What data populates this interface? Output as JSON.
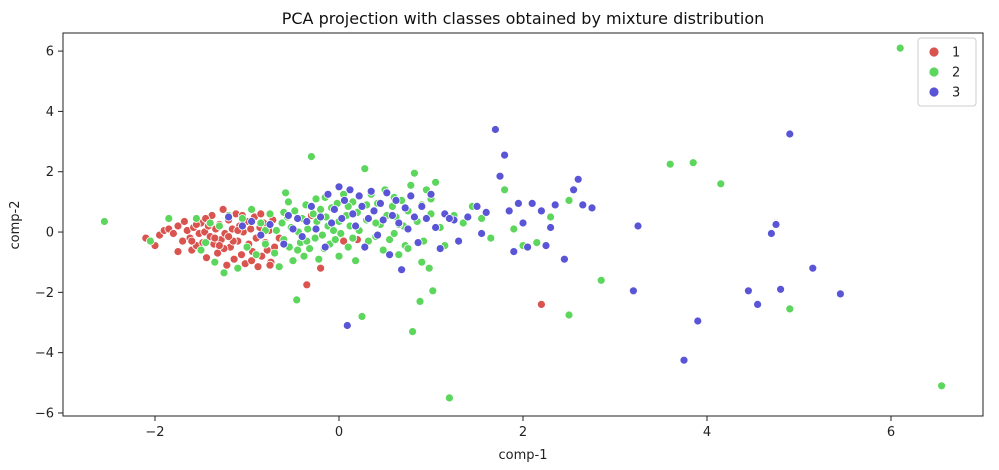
{
  "chart_data": {
    "type": "scatter",
    "title": "PCA projection with classes obtained by mixture distribution",
    "xlabel": "comp-1",
    "ylabel": "comp-2",
    "xlim": [
      -3.0,
      7.0
    ],
    "ylim": [
      -6.1,
      6.6
    ],
    "xticks": [
      -2,
      0,
      2,
      4,
      6
    ],
    "yticks": [
      -6,
      -4,
      -2,
      0,
      2,
      4,
      6
    ],
    "grid": false,
    "legend": "top-right",
    "series": [
      {
        "name": "1",
        "color": "#d9534f",
        "points": [
          [
            -2.1,
            -0.2
          ],
          [
            -2.0,
            -0.45
          ],
          [
            -1.95,
            -0.1
          ],
          [
            -1.9,
            0.05
          ],
          [
            -1.85,
            0.1
          ],
          [
            -1.8,
            -0.05
          ],
          [
            -1.75,
            0.2
          ],
          [
            -1.7,
            -0.3
          ],
          [
            -1.68,
            0.35
          ],
          [
            -1.65,
            0.05
          ],
          [
            -1.62,
            -0.2
          ],
          [
            -1.6,
            -0.6
          ],
          [
            -1.58,
            0.15
          ],
          [
            -1.55,
            -0.45
          ],
          [
            -1.52,
            -0.05
          ],
          [
            -1.5,
            0.3
          ],
          [
            -1.48,
            -0.35
          ],
          [
            -1.46,
            0.0
          ],
          [
            -1.44,
            -0.85
          ],
          [
            -1.42,
            0.2
          ],
          [
            -1.4,
            -0.15
          ],
          [
            -1.38,
            0.55
          ],
          [
            -1.36,
            -0.4
          ],
          [
            -1.34,
            0.1
          ],
          [
            -1.32,
            -0.7
          ],
          [
            -1.3,
            0.25
          ],
          [
            -1.28,
            -0.25
          ],
          [
            -1.26,
            0.75
          ],
          [
            -1.24,
            -0.05
          ],
          [
            -1.22,
            -1.1
          ],
          [
            -1.2,
            0.4
          ],
          [
            -1.18,
            -0.5
          ],
          [
            -1.16,
            0.1
          ],
          [
            -1.14,
            -0.9
          ],
          [
            -1.12,
            0.6
          ],
          [
            -1.1,
            -0.3
          ],
          [
            -1.08,
            0.2
          ],
          [
            -1.06,
            -0.75
          ],
          [
            -1.04,
            0.0
          ],
          [
            -1.02,
            -1.05
          ],
          [
            -1.0,
            0.35
          ],
          [
            -0.98,
            -0.4
          ],
          [
            -0.96,
            0.1
          ],
          [
            -0.94,
            -0.65
          ],
          [
            -0.92,
            0.5
          ],
          [
            -0.9,
            -0.2
          ],
          [
            -0.88,
            -1.15
          ],
          [
            -0.86,
            0.15
          ],
          [
            -0.84,
            -0.8
          ],
          [
            -0.82,
            0.3
          ],
          [
            -0.8,
            -0.35
          ],
          [
            -0.78,
            -0.6
          ],
          [
            -0.76,
            0.05
          ],
          [
            -0.74,
            -1.0
          ],
          [
            -0.72,
            0.4
          ],
          [
            -0.7,
            -0.5
          ],
          [
            -1.25,
            -0.55
          ],
          [
            -1.35,
            -0.2
          ],
          [
            -1.45,
            0.45
          ],
          [
            -1.55,
            0.25
          ],
          [
            -1.15,
            -0.3
          ],
          [
            -1.05,
            0.55
          ],
          [
            -0.95,
            -0.95
          ],
          [
            -0.85,
            0.6
          ],
          [
            -0.3,
            0.55
          ],
          [
            -0.2,
            -1.2
          ],
          [
            -0.35,
            -1.75
          ],
          [
            0.2,
            -0.25
          ],
          [
            0.05,
            -0.3
          ],
          [
            0.45,
            0.3
          ],
          [
            2.2,
            -2.4
          ],
          [
            -0.75,
            -1.1
          ],
          [
            -0.65,
            -0.2
          ],
          [
            -1.75,
            -0.65
          ],
          [
            -1.6,
            -0.3
          ],
          [
            -1.3,
            -0.45
          ],
          [
            -1.2,
            -0.15
          ],
          [
            -1.1,
            0.05
          ]
        ]
      },
      {
        "name": "2",
        "color": "#5cd65c",
        "points": [
          [
            -2.55,
            0.35
          ],
          [
            -2.05,
            -0.3
          ],
          [
            -1.85,
            0.45
          ],
          [
            -1.55,
            0.45
          ],
          [
            -1.5,
            -0.6
          ],
          [
            -1.4,
            0.3
          ],
          [
            -1.35,
            -1.0
          ],
          [
            -1.25,
            -1.35
          ],
          [
            -1.2,
            0.55
          ],
          [
            -1.1,
            -1.2
          ],
          [
            -1.05,
            0.45
          ],
          [
            -0.95,
            0.75
          ],
          [
            -0.9,
            -0.75
          ],
          [
            -0.85,
            0.3
          ],
          [
            -0.8,
            -0.4
          ],
          [
            -0.75,
            0.6
          ],
          [
            -0.7,
            -0.7
          ],
          [
            -0.68,
            0.05
          ],
          [
            -0.65,
            -1.15
          ],
          [
            -0.62,
            0.3
          ],
          [
            -0.6,
            -0.25
          ],
          [
            -0.58,
            1.3
          ],
          [
            -0.56,
            0.5
          ],
          [
            -0.54,
            -0.5
          ],
          [
            -0.52,
            0.15
          ],
          [
            -0.5,
            -0.95
          ],
          [
            -0.48,
            0.7
          ],
          [
            -0.46,
            -2.25
          ],
          [
            -0.44,
            0.0
          ],
          [
            -0.42,
            -0.35
          ],
          [
            -0.4,
            0.45
          ],
          [
            -0.38,
            -0.8
          ],
          [
            -0.36,
            0.9
          ],
          [
            -0.34,
            0.1
          ],
          [
            -0.32,
            -0.55
          ],
          [
            -0.3,
            2.5
          ],
          [
            -0.28,
            0.6
          ],
          [
            -0.26,
            -0.2
          ],
          [
            -0.24,
            0.35
          ],
          [
            -0.22,
            -0.9
          ],
          [
            -0.2,
            0.75
          ],
          [
            -0.18,
            -0.1
          ],
          [
            -0.16,
            -0.55
          ],
          [
            -0.14,
            0.5
          ],
          [
            -0.12,
            0.2
          ],
          [
            -0.1,
            -0.4
          ],
          [
            -0.08,
            0.8
          ],
          [
            -0.06,
            0.05
          ],
          [
            -0.04,
            -0.25
          ],
          [
            -0.02,
            0.95
          ],
          [
            0.0,
            0.35
          ],
          [
            0.02,
            -0.05
          ],
          [
            0.05,
            1.25
          ],
          [
            0.08,
            0.55
          ],
          [
            0.1,
            -0.5
          ],
          [
            0.12,
            0.2
          ],
          [
            0.15,
            1.0
          ],
          [
            0.18,
            -0.95
          ],
          [
            0.2,
            0.65
          ],
          [
            0.22,
            0.05
          ],
          [
            0.25,
            -2.8
          ],
          [
            0.28,
            2.1
          ],
          [
            0.3,
            0.4
          ],
          [
            0.32,
            -0.3
          ],
          [
            0.35,
            1.25
          ],
          [
            0.38,
            0.7
          ],
          [
            0.4,
            -0.15
          ],
          [
            0.42,
            0.95
          ],
          [
            0.45,
            0.25
          ],
          [
            0.48,
            -0.6
          ],
          [
            0.5,
            1.4
          ],
          [
            0.52,
            0.55
          ],
          [
            0.55,
            -0.25
          ],
          [
            0.58,
            0.85
          ],
          [
            0.6,
            -0.05
          ],
          [
            0.62,
            0.5
          ],
          [
            0.65,
            -0.75
          ],
          [
            0.68,
            1.05
          ],
          [
            0.7,
            0.2
          ],
          [
            0.72,
            -0.45
          ],
          [
            0.75,
            0.7
          ],
          [
            0.78,
            1.55
          ],
          [
            0.8,
            -3.3
          ],
          [
            0.82,
            1.95
          ],
          [
            0.85,
            0.35
          ],
          [
            0.88,
            -2.3
          ],
          [
            0.9,
            0.9
          ],
          [
            0.92,
            -0.3
          ],
          [
            0.95,
            1.4
          ],
          [
            0.98,
            -1.2
          ],
          [
            1.0,
            0.6
          ],
          [
            1.02,
            -1.95
          ],
          [
            1.05,
            1.65
          ],
          [
            1.1,
            0.15
          ],
          [
            1.15,
            -0.45
          ],
          [
            1.2,
            -5.5
          ],
          [
            1.25,
            0.55
          ],
          [
            1.35,
            0.3
          ],
          [
            1.45,
            0.85
          ],
          [
            1.55,
            0.45
          ],
          [
            1.65,
            -0.2
          ],
          [
            1.8,
            1.4
          ],
          [
            1.9,
            0.1
          ],
          [
            2.0,
            -0.45
          ],
          [
            2.1,
            0.95
          ],
          [
            2.15,
            -0.35
          ],
          [
            2.3,
            0.5
          ],
          [
            2.5,
            1.05
          ],
          [
            2.5,
            -2.75
          ],
          [
            2.85,
            -1.6
          ],
          [
            3.6,
            2.25
          ],
          [
            3.85,
            2.3
          ],
          [
            4.15,
            1.6
          ],
          [
            4.9,
            -2.55
          ],
          [
            6.1,
            6.1
          ],
          [
            6.55,
            -5.1
          ],
          [
            -0.55,
            1.0
          ],
          [
            -0.45,
            -0.6
          ],
          [
            -0.25,
            1.1
          ],
          [
            0.0,
            -0.8
          ],
          [
            0.15,
            -0.2
          ],
          [
            0.3,
            0.9
          ],
          [
            0.6,
            1.15
          ],
          [
            0.75,
            -0.55
          ],
          [
            0.9,
            -1.0
          ],
          [
            1.0,
            1.1
          ],
          [
            -1.0,
            -0.5
          ],
          [
            -0.8,
            0.05
          ],
          [
            -1.3,
            0.2
          ],
          [
            -1.45,
            -0.35
          ],
          [
            -0.6,
            0.65
          ],
          [
            -0.35,
            -0.3
          ],
          [
            -0.15,
            1.15
          ],
          [
            0.1,
            0.85
          ],
          [
            0.4,
            0.3
          ],
          [
            0.65,
            0.25
          ]
        ]
      },
      {
        "name": "3",
        "color": "#5a55d6",
        "points": [
          [
            -1.2,
            0.5
          ],
          [
            -1.05,
            0.2
          ],
          [
            -0.95,
            0.35
          ],
          [
            -0.85,
            -0.1
          ],
          [
            -0.75,
            0.25
          ],
          [
            -0.6,
            -0.4
          ],
          [
            -0.55,
            0.55
          ],
          [
            -0.5,
            0.1
          ],
          [
            -0.45,
            0.45
          ],
          [
            -0.4,
            -0.15
          ],
          [
            -0.35,
            0.35
          ],
          [
            -0.3,
            0.85
          ],
          [
            -0.25,
            0.1
          ],
          [
            -0.2,
            0.5
          ],
          [
            -0.15,
            -0.5
          ],
          [
            -0.12,
            1.25
          ],
          [
            -0.08,
            0.3
          ],
          [
            -0.05,
            0.75
          ],
          [
            0.0,
            1.5
          ],
          [
            0.03,
            0.45
          ],
          [
            0.06,
            1.05
          ],
          [
            0.09,
            -3.1
          ],
          [
            0.12,
            1.4
          ],
          [
            0.15,
            0.6
          ],
          [
            0.18,
            0.2
          ],
          [
            0.22,
            1.2
          ],
          [
            0.25,
            0.85
          ],
          [
            0.28,
            -0.5
          ],
          [
            0.32,
            0.45
          ],
          [
            0.35,
            1.35
          ],
          [
            0.38,
            0.7
          ],
          [
            0.42,
            -0.1
          ],
          [
            0.45,
            0.95
          ],
          [
            0.48,
            0.4
          ],
          [
            0.52,
            1.3
          ],
          [
            0.55,
            -0.75
          ],
          [
            0.58,
            0.55
          ],
          [
            0.62,
            1.05
          ],
          [
            0.65,
            0.3
          ],
          [
            0.68,
            -1.25
          ],
          [
            0.72,
            0.8
          ],
          [
            0.75,
            0.1
          ],
          [
            0.78,
            1.2
          ],
          [
            0.82,
            0.5
          ],
          [
            0.86,
            -0.35
          ],
          [
            0.9,
            0.85
          ],
          [
            0.95,
            0.45
          ],
          [
            1.0,
            1.25
          ],
          [
            1.05,
            0.15
          ],
          [
            1.1,
            -0.55
          ],
          [
            1.15,
            0.6
          ],
          [
            1.25,
            0.4
          ],
          [
            1.3,
            -0.3
          ],
          [
            1.4,
            0.5
          ],
          [
            1.5,
            0.85
          ],
          [
            1.55,
            -0.05
          ],
          [
            1.7,
            3.4
          ],
          [
            1.75,
            1.85
          ],
          [
            1.8,
            2.55
          ],
          [
            1.85,
            0.7
          ],
          [
            1.9,
            -0.65
          ],
          [
            2.0,
            0.3
          ],
          [
            2.1,
            0.95
          ],
          [
            2.2,
            0.7
          ],
          [
            2.25,
            -0.45
          ],
          [
            2.35,
            0.9
          ],
          [
            2.45,
            -0.9
          ],
          [
            2.55,
            1.4
          ],
          [
            2.6,
            1.75
          ],
          [
            2.65,
            0.9
          ],
          [
            2.75,
            0.8
          ],
          [
            3.2,
            -1.95
          ],
          [
            3.25,
            0.2
          ],
          [
            3.75,
            -4.25
          ],
          [
            3.9,
            -2.95
          ],
          [
            4.45,
            -1.95
          ],
          [
            4.55,
            -2.4
          ],
          [
            4.7,
            -0.05
          ],
          [
            4.75,
            0.25
          ],
          [
            4.8,
            -1.9
          ],
          [
            4.9,
            3.25
          ],
          [
            5.15,
            -1.2
          ],
          [
            5.45,
            -2.05
          ],
          [
            1.2,
            0.45
          ],
          [
            1.6,
            0.65
          ],
          [
            2.05,
            -0.5
          ],
          [
            2.3,
            0.15
          ],
          [
            1.95,
            0.95
          ]
        ]
      }
    ]
  }
}
